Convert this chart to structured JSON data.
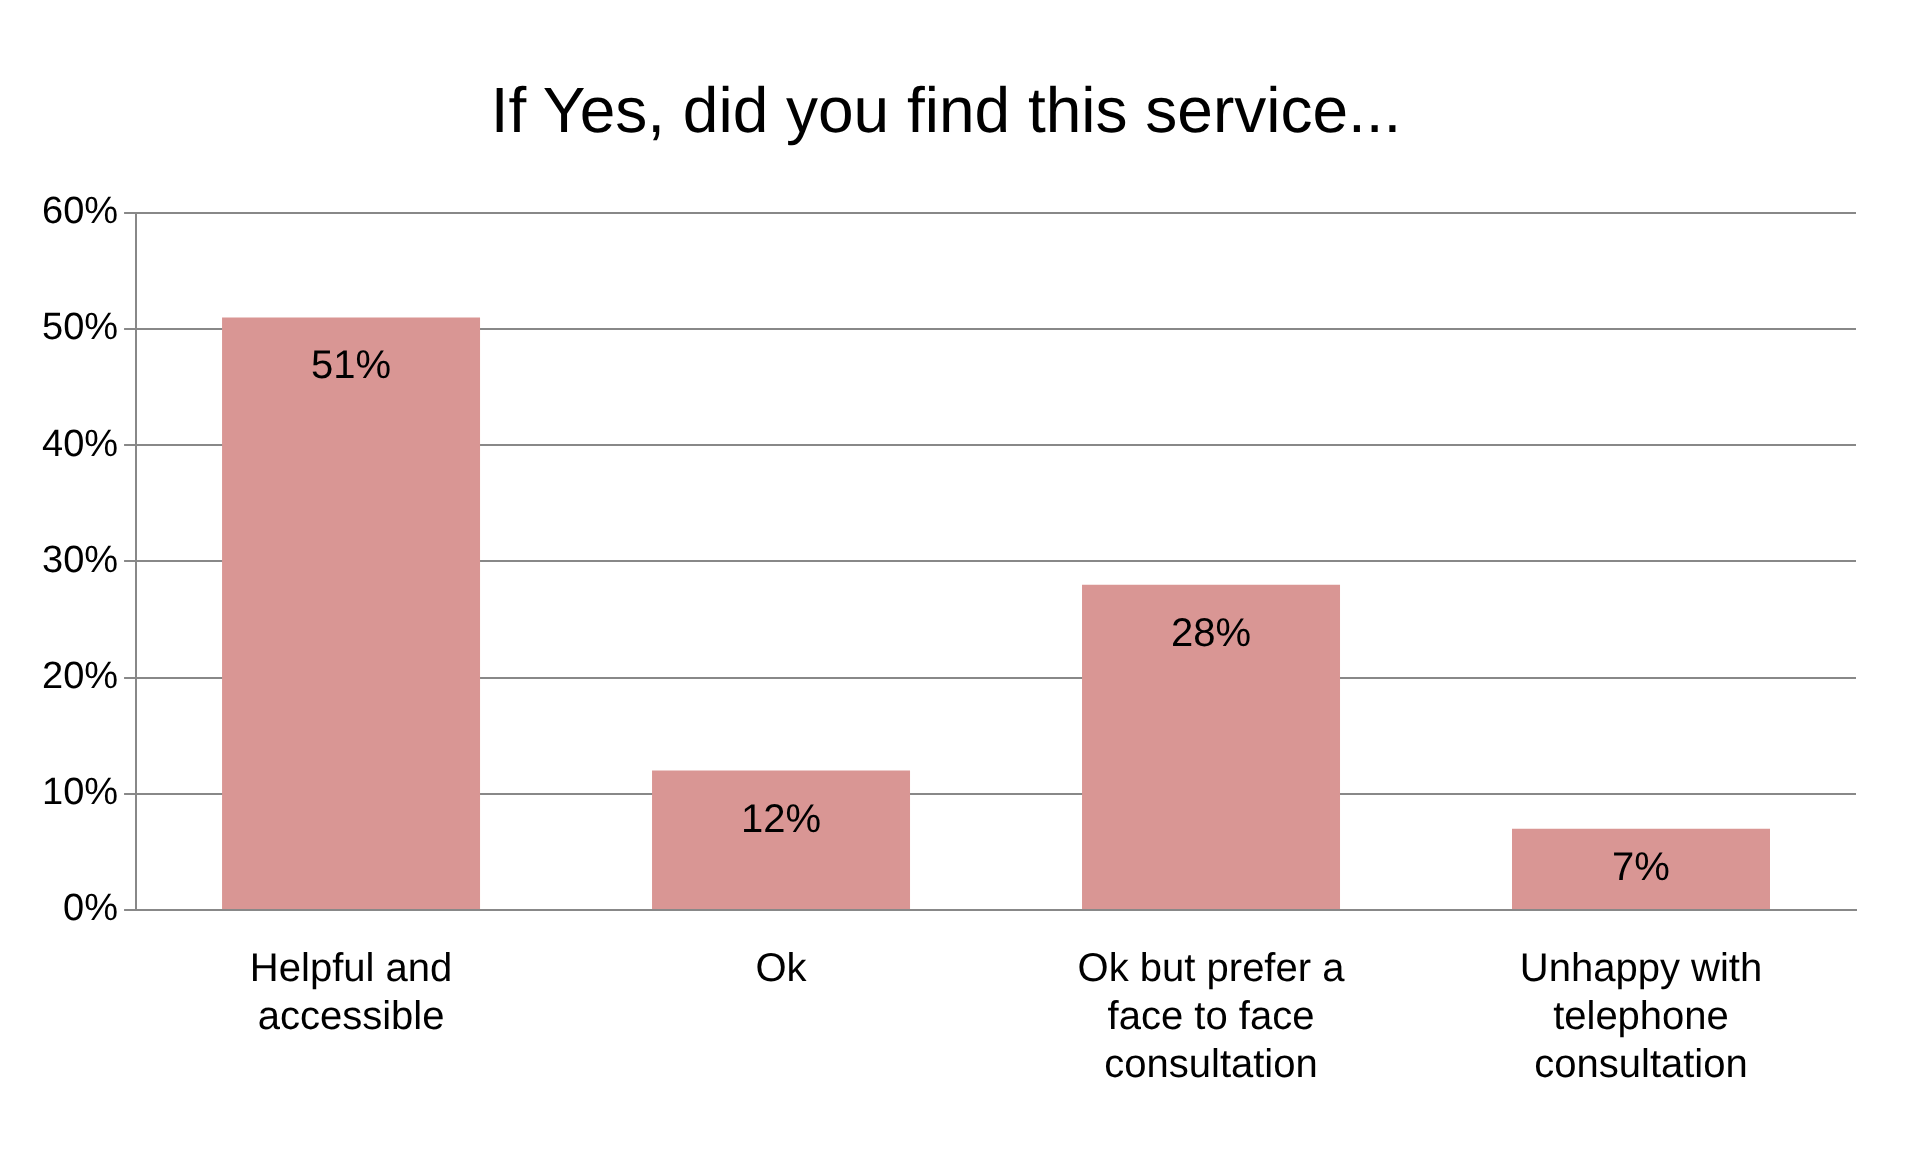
{
  "chart_data": {
    "type": "bar",
    "title": "If Yes, did you find this service...",
    "categories": [
      "Helpful and accessible",
      "Ok",
      "Ok but prefer a face to face consultation",
      "Unhappy with telephone consultation"
    ],
    "values": [
      51,
      12,
      28,
      7
    ],
    "value_labels": [
      "51%",
      "12%",
      "28%",
      "7%"
    ],
    "color": "#d99694",
    "ylim": [
      0,
      60
    ],
    "yticks": [
      {
        "value": 0,
        "label": "0%"
      },
      {
        "value": 10,
        "label": "10%"
      },
      {
        "value": 20,
        "label": "20%"
      },
      {
        "value": 30,
        "label": "30%"
      },
      {
        "value": 40,
        "label": "40%"
      },
      {
        "value": 50,
        "label": "50%"
      },
      {
        "value": 60,
        "label": "60%"
      }
    ],
    "grid": "y",
    "legend": false
  }
}
